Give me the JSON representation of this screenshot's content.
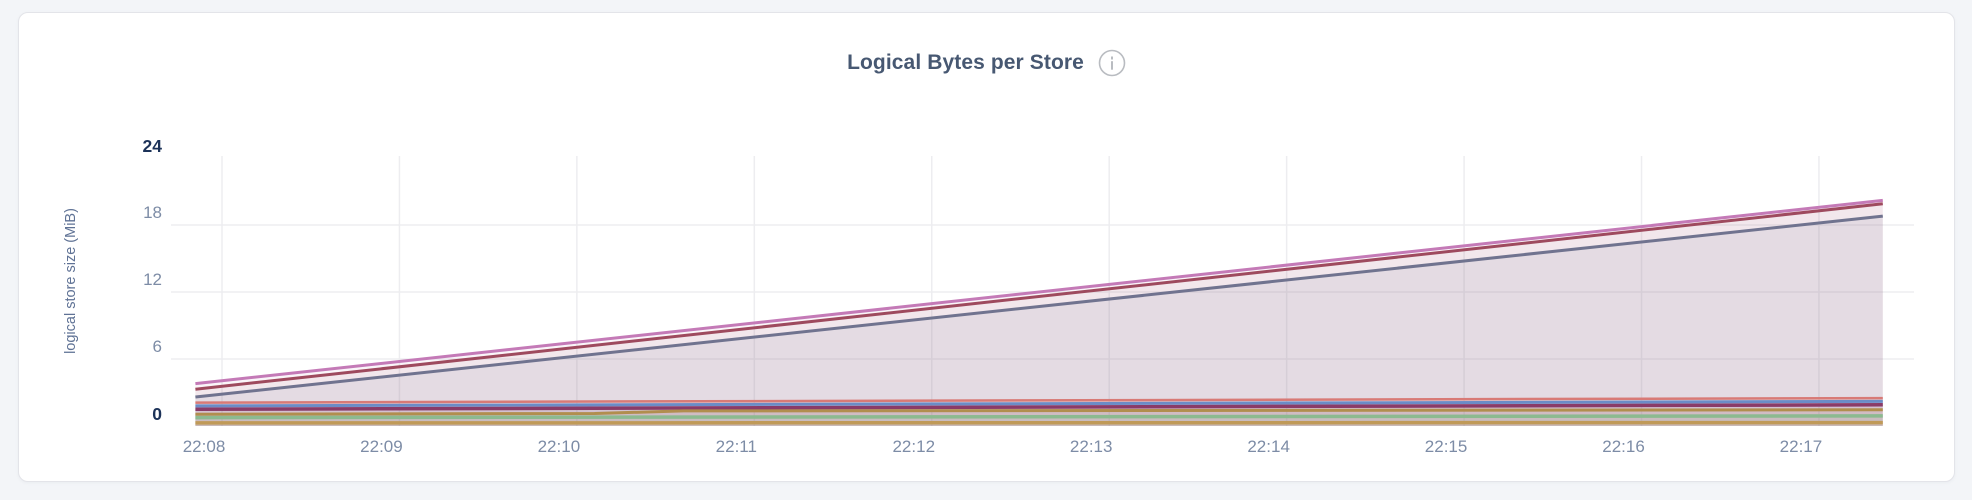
{
  "colors": {
    "page_bg": "#f3f5f8",
    "card_bg": "#ffffff",
    "card_border": "#e3e4e9",
    "title": "#475872",
    "axis_tick": "#7d8ca6",
    "axis_tick_emphasis": "#1c3258",
    "y_axis_label": "#5f7295",
    "grid": "#ededf0",
    "info_icon": "#b9bcc1"
  },
  "chart_data": {
    "type": "area",
    "title": "Logical Bytes per Store",
    "ylabel": "logical store size (MiB)",
    "xlabel": "",
    "ylim": [
      0,
      24
    ],
    "grid": true,
    "legend": "none",
    "x_unit": "minutes after 22:08",
    "t_domain": [
      -0.15,
      9.36
    ],
    "x_ticks": [
      {
        "label": "22:08",
        "t": 0
      },
      {
        "label": "22:09",
        "t": 1
      },
      {
        "label": "22:10",
        "t": 2
      },
      {
        "label": "22:11",
        "t": 3
      },
      {
        "label": "22:12",
        "t": 4
      },
      {
        "label": "22:13",
        "t": 5
      },
      {
        "label": "22:14",
        "t": 6
      },
      {
        "label": "22:15",
        "t": 7
      },
      {
        "label": "22:16",
        "t": 8
      },
      {
        "label": "22:17",
        "t": 9
      }
    ],
    "y_ticks": [
      {
        "label": "24",
        "v": 24,
        "emphasis": true
      },
      {
        "label": "18",
        "v": 18,
        "emphasis": false
      },
      {
        "label": "12",
        "v": 12,
        "emphasis": false
      },
      {
        "label": "6",
        "v": 6,
        "emphasis": false
      },
      {
        "label": "0",
        "v": 0,
        "emphasis": true
      }
    ],
    "y_gridlines": [
      18,
      12,
      6
    ],
    "series": [
      {
        "color": "#c47ab7",
        "width": 3,
        "fill_opacity": 0.08,
        "points": [
          [
            -0.15,
            3.8
          ],
          [
            9.36,
            20.2
          ]
        ]
      },
      {
        "color": "#9e4a5e",
        "width": 3,
        "fill_opacity": 0.08,
        "points": [
          [
            -0.15,
            3.3
          ],
          [
            9.36,
            19.9
          ]
        ]
      },
      {
        "color": "#70738f",
        "width": 3,
        "fill_opacity": 0.1,
        "points": [
          [
            -0.15,
            2.6
          ],
          [
            9.36,
            18.8
          ]
        ]
      },
      {
        "color": "#d87a76",
        "width": 2.5,
        "fill_opacity": 0.08,
        "points": [
          [
            -0.15,
            2.1
          ],
          [
            9.36,
            2.5
          ]
        ]
      },
      {
        "color": "#6b8cc7",
        "width": 3,
        "fill_opacity": 0.08,
        "points": [
          [
            -0.15,
            1.8
          ],
          [
            9.36,
            2.2
          ]
        ]
      },
      {
        "color": "#8a3b68",
        "width": 3.5,
        "fill_opacity": 0.08,
        "points": [
          [
            -0.15,
            1.5
          ],
          [
            9.36,
            1.9
          ]
        ]
      },
      {
        "color": "#b18e4e",
        "width": 3,
        "fill_opacity": 0.08,
        "points": [
          [
            -0.15,
            1.05
          ],
          [
            2.1,
            1.12
          ],
          [
            2.6,
            1.35
          ],
          [
            9.36,
            1.45
          ]
        ]
      },
      {
        "color": "#8cba90",
        "width": 3.5,
        "fill_opacity": 0.08,
        "points": [
          [
            -0.15,
            0.75
          ],
          [
            9.36,
            0.9
          ]
        ]
      },
      {
        "color": "#c09a58",
        "width": 3.5,
        "fill_opacity": 0.08,
        "points": [
          [
            -0.15,
            0.28
          ],
          [
            9.36,
            0.3
          ]
        ]
      }
    ]
  }
}
